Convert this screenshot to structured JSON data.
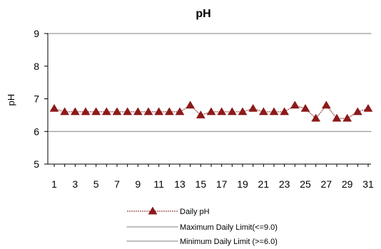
{
  "chart_data": {
    "type": "line",
    "title": "pH",
    "xlabel": "",
    "ylabel": "pH",
    "ylim": [
      5,
      9
    ],
    "yticks": [
      "5",
      "6",
      "7",
      "8",
      "9"
    ],
    "x": [
      1,
      2,
      3,
      4,
      5,
      6,
      7,
      8,
      9,
      10,
      11,
      12,
      13,
      14,
      15,
      16,
      17,
      18,
      19,
      20,
      21,
      22,
      23,
      24,
      25,
      26,
      27,
      28,
      29,
      30,
      31
    ],
    "xtick_labels": [
      "1",
      "3",
      "5",
      "7",
      "9",
      "11",
      "13",
      "15",
      "17",
      "19",
      "21",
      "23",
      "25",
      "27",
      "29",
      "31"
    ],
    "grid": false,
    "legend_position": "bottom",
    "series": [
      {
        "name": "Daily pH",
        "color": "#8B1A1A",
        "marker": "triangle",
        "values": [
          6.7,
          6.6,
          6.6,
          6.6,
          6.6,
          6.6,
          6.6,
          6.6,
          6.6,
          6.6,
          6.6,
          6.6,
          6.6,
          6.8,
          6.5,
          6.6,
          6.6,
          6.6,
          6.6,
          6.7,
          6.6,
          6.6,
          6.6,
          6.8,
          6.7,
          6.4,
          6.8,
          6.4,
          6.4,
          6.6,
          6.7
        ]
      },
      {
        "name": "Maximum Daily Limit(<=9.0)",
        "color": "#000000",
        "style": "dotted",
        "value": 9.0
      },
      {
        "name": "Minimum Daily Limit (>=6.0)",
        "color": "#000000",
        "style": "dotted",
        "value": 6.0
      }
    ]
  }
}
